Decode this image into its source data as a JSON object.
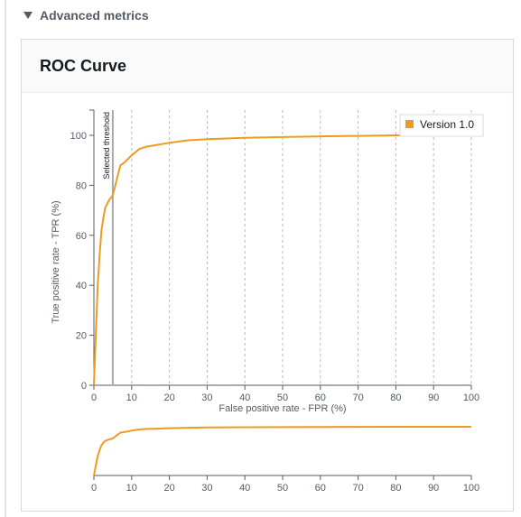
{
  "section": {
    "title": "Advanced metrics",
    "toggle_icon": "caret-down-icon"
  },
  "panel": {
    "title": "ROC Curve"
  },
  "colors": {
    "series": "#ec9c21",
    "threshold": "#a9a9a9",
    "grid": "#b9b9b9",
    "axis": "#545b64"
  },
  "chart_data": [
    {
      "type": "line",
      "title": "ROC Curve",
      "xlabel": "False positive rate - FPR (%)",
      "ylabel": "True positive rate - TPR (%)",
      "xlim": [
        0,
        100
      ],
      "ylim": [
        0,
        100
      ],
      "xticks": [
        0,
        10,
        20,
        30,
        40,
        50,
        60,
        70,
        80,
        90,
        100
      ],
      "yticks": [
        0,
        20,
        40,
        60,
        80,
        100
      ],
      "grid": "vertical dashed",
      "legend": {
        "position": "top-right",
        "label": "Version 1.0"
      },
      "threshold": {
        "label": "Selected threshold",
        "fpr": 5
      },
      "series": [
        {
          "name": "Version 1.0",
          "x": [
            0,
            0.5,
            1,
            1.5,
            2,
            2.5,
            3,
            4,
            5,
            6,
            7,
            8,
            10,
            12,
            14,
            16,
            18,
            20,
            25,
            30,
            40,
            50,
            60,
            70,
            80,
            90,
            100
          ],
          "y": [
            0,
            20,
            40,
            52,
            62,
            67,
            71,
            74,
            76,
            82,
            88,
            89,
            92,
            94.5,
            95.5,
            96,
            96.5,
            97,
            98,
            98.5,
            99,
            99.3,
            99.6,
            99.8,
            100,
            100,
            100
          ]
        }
      ]
    },
    {
      "type": "line",
      "title": "",
      "xlabel": "",
      "ylabel": "",
      "xlim": [
        0,
        100
      ],
      "ylim": [
        0,
        100
      ],
      "xticks": [
        0,
        10,
        20,
        30,
        40,
        50,
        60,
        70,
        80,
        90,
        100
      ],
      "role": "range-overview",
      "series": [
        {
          "name": "Version 1.0",
          "x": [
            0,
            0.5,
            1,
            1.5,
            2,
            2.5,
            3,
            4,
            5,
            6,
            7,
            8,
            10,
            12,
            14,
            16,
            18,
            20,
            25,
            30,
            40,
            50,
            60,
            70,
            80,
            90,
            100
          ],
          "y": [
            0,
            20,
            40,
            52,
            62,
            67,
            71,
            74,
            76,
            82,
            88,
            89,
            92,
            94.5,
            95.5,
            96,
            96.5,
            97,
            98,
            98.5,
            99,
            99.3,
            99.6,
            99.8,
            100,
            100,
            100
          ]
        }
      ]
    }
  ]
}
